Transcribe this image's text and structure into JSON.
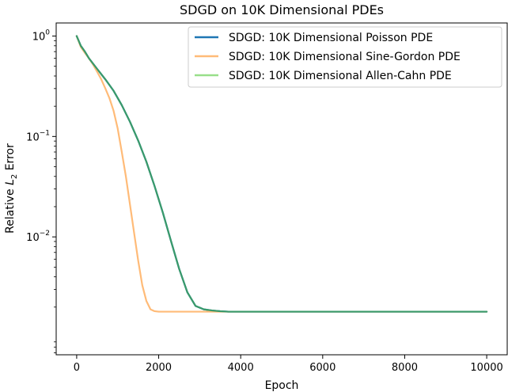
{
  "chart_data": {
    "type": "line",
    "title": "SDGD on 10K Dimensional PDEs",
    "xlabel": "Epoch",
    "ylabel_main": "Relative ",
    "ylabel_var": "L",
    "ylabel_sub": "2",
    "ylabel_tail": " Error",
    "xscale": "linear",
    "yscale": "log",
    "xlim": [
      -500,
      10500
    ],
    "ylim": [
      0.00067,
      1.35
    ],
    "xticks": [
      0,
      2000,
      4000,
      6000,
      8000,
      10000
    ],
    "xtick_labels": [
      "0",
      "2000",
      "4000",
      "6000",
      "8000",
      "10000"
    ],
    "yticks": [
      {
        "value": 1,
        "base": "10",
        "exp": "0"
      },
      {
        "value": 0.1,
        "base": "10",
        "exp": "−1"
      },
      {
        "value": 0.01,
        "base": "10",
        "exp": "−2"
      }
    ],
    "legend_position": "top-right",
    "series": [
      {
        "name": "SDGD: 10K Dimensional Poisson PDE",
        "color": "#1f77b4",
        "x": [
          0,
          100,
          200,
          300,
          500,
          700,
          900,
          1100,
          1300,
          1500,
          1700,
          1900,
          2100,
          2300,
          2500,
          2700,
          2900,
          3100,
          3300,
          3500,
          3700,
          3900,
          4000,
          5000,
          6000,
          7000,
          8000,
          9000,
          10000
        ],
        "y": [
          1.0,
          0.8,
          0.7,
          0.6,
          0.47,
          0.37,
          0.285,
          0.205,
          0.14,
          0.091,
          0.056,
          0.032,
          0.0175,
          0.0091,
          0.0048,
          0.0028,
          0.00205,
          0.0019,
          0.00185,
          0.00182,
          0.0018,
          0.0018,
          0.0018,
          0.0018,
          0.0018,
          0.0018,
          0.0018,
          0.0018,
          0.0018
        ]
      },
      {
        "name": "SDGD: 10K Dimensional Sine-Gordon PDE",
        "color": "#ffbb78",
        "x": [
          0,
          100,
          200,
          300,
          400,
          500,
          600,
          700,
          800,
          900,
          1000,
          1100,
          1200,
          1300,
          1400,
          1500,
          1600,
          1700,
          1800,
          1900,
          2000,
          2200,
          3000,
          4000,
          5000,
          6000,
          7000,
          8000,
          9000,
          10000
        ],
        "y": [
          1.0,
          0.78,
          0.68,
          0.6,
          0.52,
          0.44,
          0.37,
          0.3,
          0.24,
          0.18,
          0.12,
          0.07,
          0.04,
          0.021,
          0.011,
          0.0058,
          0.0033,
          0.0023,
          0.0019,
          0.00182,
          0.0018,
          0.0018,
          0.0018,
          0.0018,
          0.0018,
          0.0018,
          0.0018,
          0.0018,
          0.0018,
          0.0018
        ]
      },
      {
        "name": "SDGD: 10K Dimensional Allen-Cahn PDE",
        "color": "#2ca02c",
        "x": [
          0,
          100,
          200,
          300,
          500,
          700,
          900,
          1100,
          1300,
          1500,
          1700,
          1900,
          2100,
          2300,
          2500,
          2700,
          2900,
          3100,
          3300,
          3500,
          3700,
          3900,
          4000,
          5000,
          6000,
          7000,
          8000,
          9000,
          10000
        ],
        "y": [
          1.0,
          0.8,
          0.7,
          0.6,
          0.47,
          0.37,
          0.285,
          0.205,
          0.14,
          0.091,
          0.056,
          0.032,
          0.0175,
          0.0091,
          0.0048,
          0.0028,
          0.00205,
          0.0019,
          0.00185,
          0.00182,
          0.0018,
          0.0018,
          0.0018,
          0.0018,
          0.0018,
          0.0018,
          0.0018,
          0.0018,
          0.0018
        ]
      }
    ]
  }
}
